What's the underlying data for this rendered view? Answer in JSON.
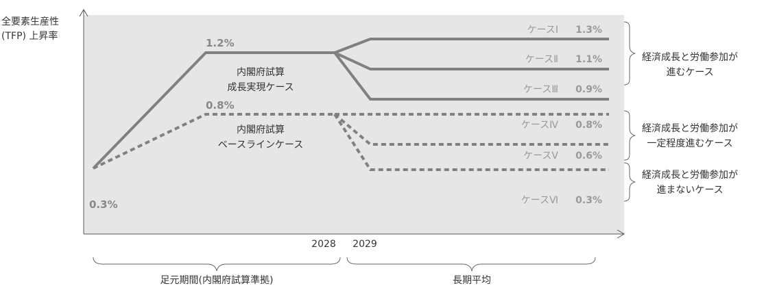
{
  "chart_data": {
    "type": "line",
    "ylabel_lines": [
      "全要素生産性",
      "(TFP) 上昇率"
    ],
    "x_ticks": [
      "2028",
      "2029"
    ],
    "periods": [
      "足元期間(内閣府試算準拠)",
      "長期平均"
    ],
    "start_value_label": "0.3%",
    "series": [
      {
        "group": "solid",
        "name_lines": [
          "内閣府試算",
          "成長実現ケース"
        ],
        "peak_label": "1.2%",
        "values": [
          0.3,
          1.2,
          1.2
        ],
        "branches": [
          {
            "case": "ケースⅠ",
            "value_label": "1.3%",
            "value": 1.3
          },
          {
            "case": "ケースⅡ",
            "value_label": "1.1%",
            "value": 1.1
          },
          {
            "case": "ケースⅢ",
            "value_label": "0.9%",
            "value": 0.9
          }
        ]
      },
      {
        "group": "dashed",
        "name_lines": [
          "内閣府試算",
          "ベースラインケース"
        ],
        "peak_label": "0.8%",
        "values": [
          0.3,
          0.8,
          0.8
        ],
        "branches": [
          {
            "case": "ケースⅣ",
            "value_label": "0.8%",
            "value": 0.8
          },
          {
            "case": "ケースⅤ",
            "value_label": "0.6%",
            "value": 0.6
          },
          {
            "case": "ケースⅥ",
            "value_label": "0.3%",
            "value": 0.3
          }
        ]
      }
    ],
    "groups": [
      {
        "lines": [
          "経済成長と労働参加が",
          "進むケース"
        ]
      },
      {
        "lines": [
          "経済成長と労働参加が",
          "一定程度進むケース"
        ]
      },
      {
        "lines": [
          "経済成長と労働参加が",
          "進まないケース"
        ]
      }
    ],
    "colors": {
      "plot_bg": "#e6e6e6",
      "line": "#808080",
      "label": "#999999",
      "text": "#333333"
    }
  }
}
